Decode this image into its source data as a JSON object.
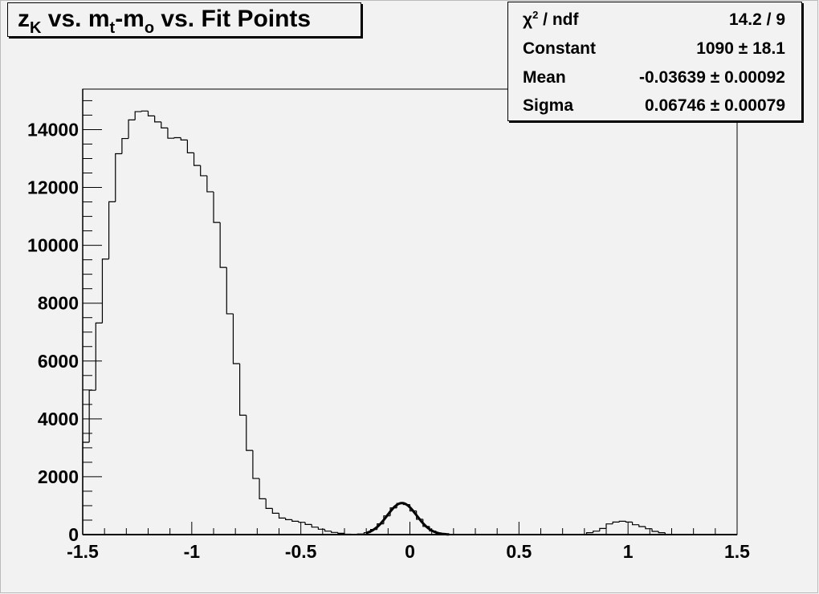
{
  "title": {
    "parts": [
      {
        "text": "z",
        "sub": "K"
      },
      {
        "text": " vs. m",
        "sub": "t"
      },
      {
        "text": "-m",
        "sub": "o"
      },
      {
        "text": " vs. Fit Points",
        "sub": ""
      }
    ]
  },
  "stats": {
    "rows": [
      {
        "label": "χ",
        "label_sup": "2",
        "label_rest": " / ndf",
        "value": "14.2 / 9"
      },
      {
        "label": "Constant",
        "value": "1090 ± 18.1"
      },
      {
        "label": "Mean",
        "value": "-0.03639 ± 0.00092"
      },
      {
        "label": "Sigma",
        "value": "0.06746 ± 0.00079"
      }
    ]
  },
  "chart_data": {
    "type": "histogram",
    "title": "z_K vs. m_t-m_o vs. Fit Points",
    "xlabel": "",
    "ylabel": "",
    "xlim": [
      -1.5,
      1.5
    ],
    "ylim": [
      0,
      15400
    ],
    "grid": false,
    "bin_width": 0.03,
    "x_ticks": [
      "-1.5",
      "-1",
      "-0.5",
      "0",
      "0.5",
      "1",
      "1.5"
    ],
    "y_ticks": [
      "0",
      "2000",
      "4000",
      "6000",
      "8000",
      "10000",
      "12000",
      "14000"
    ],
    "bin_contents": [
      3190,
      4990,
      7316,
      9524,
      11504,
      13167,
      13692,
      14335,
      14622,
      14642,
      14474,
      14266,
      14058,
      13702,
      13721,
      13642,
      13197,
      12761,
      12405,
      11850,
      10791,
      9237,
      7633,
      5910,
      4128,
      2911,
      1940,
      1238,
      905,
      739,
      573,
      517,
      462,
      425,
      351,
      259,
      185,
      120,
      74,
      46,
      15,
      8,
      20,
      68,
      176,
      371,
      647,
      922,
      1080,
      1039,
      819,
      531,
      282,
      123,
      44,
      13,
      0,
      0,
      0,
      0,
      0,
      0,
      0,
      0,
      0,
      0,
      0,
      0,
      0,
      0,
      0,
      0,
      0,
      0,
      0,
      0,
      0,
      65,
      120,
      212,
      370,
      434,
      462,
      434,
      342,
      277,
      203,
      111,
      65,
      0,
      0,
      0,
      0,
      0,
      0,
      0,
      0,
      0,
      0,
      0
    ],
    "fit": {
      "function": "gaus",
      "range": [
        -0.2,
        0.18
      ],
      "constant": 1090,
      "mean": -0.03639,
      "sigma": 0.06746
    },
    "colors": {
      "background": "#f2f2f2",
      "line": "#000000"
    }
  }
}
